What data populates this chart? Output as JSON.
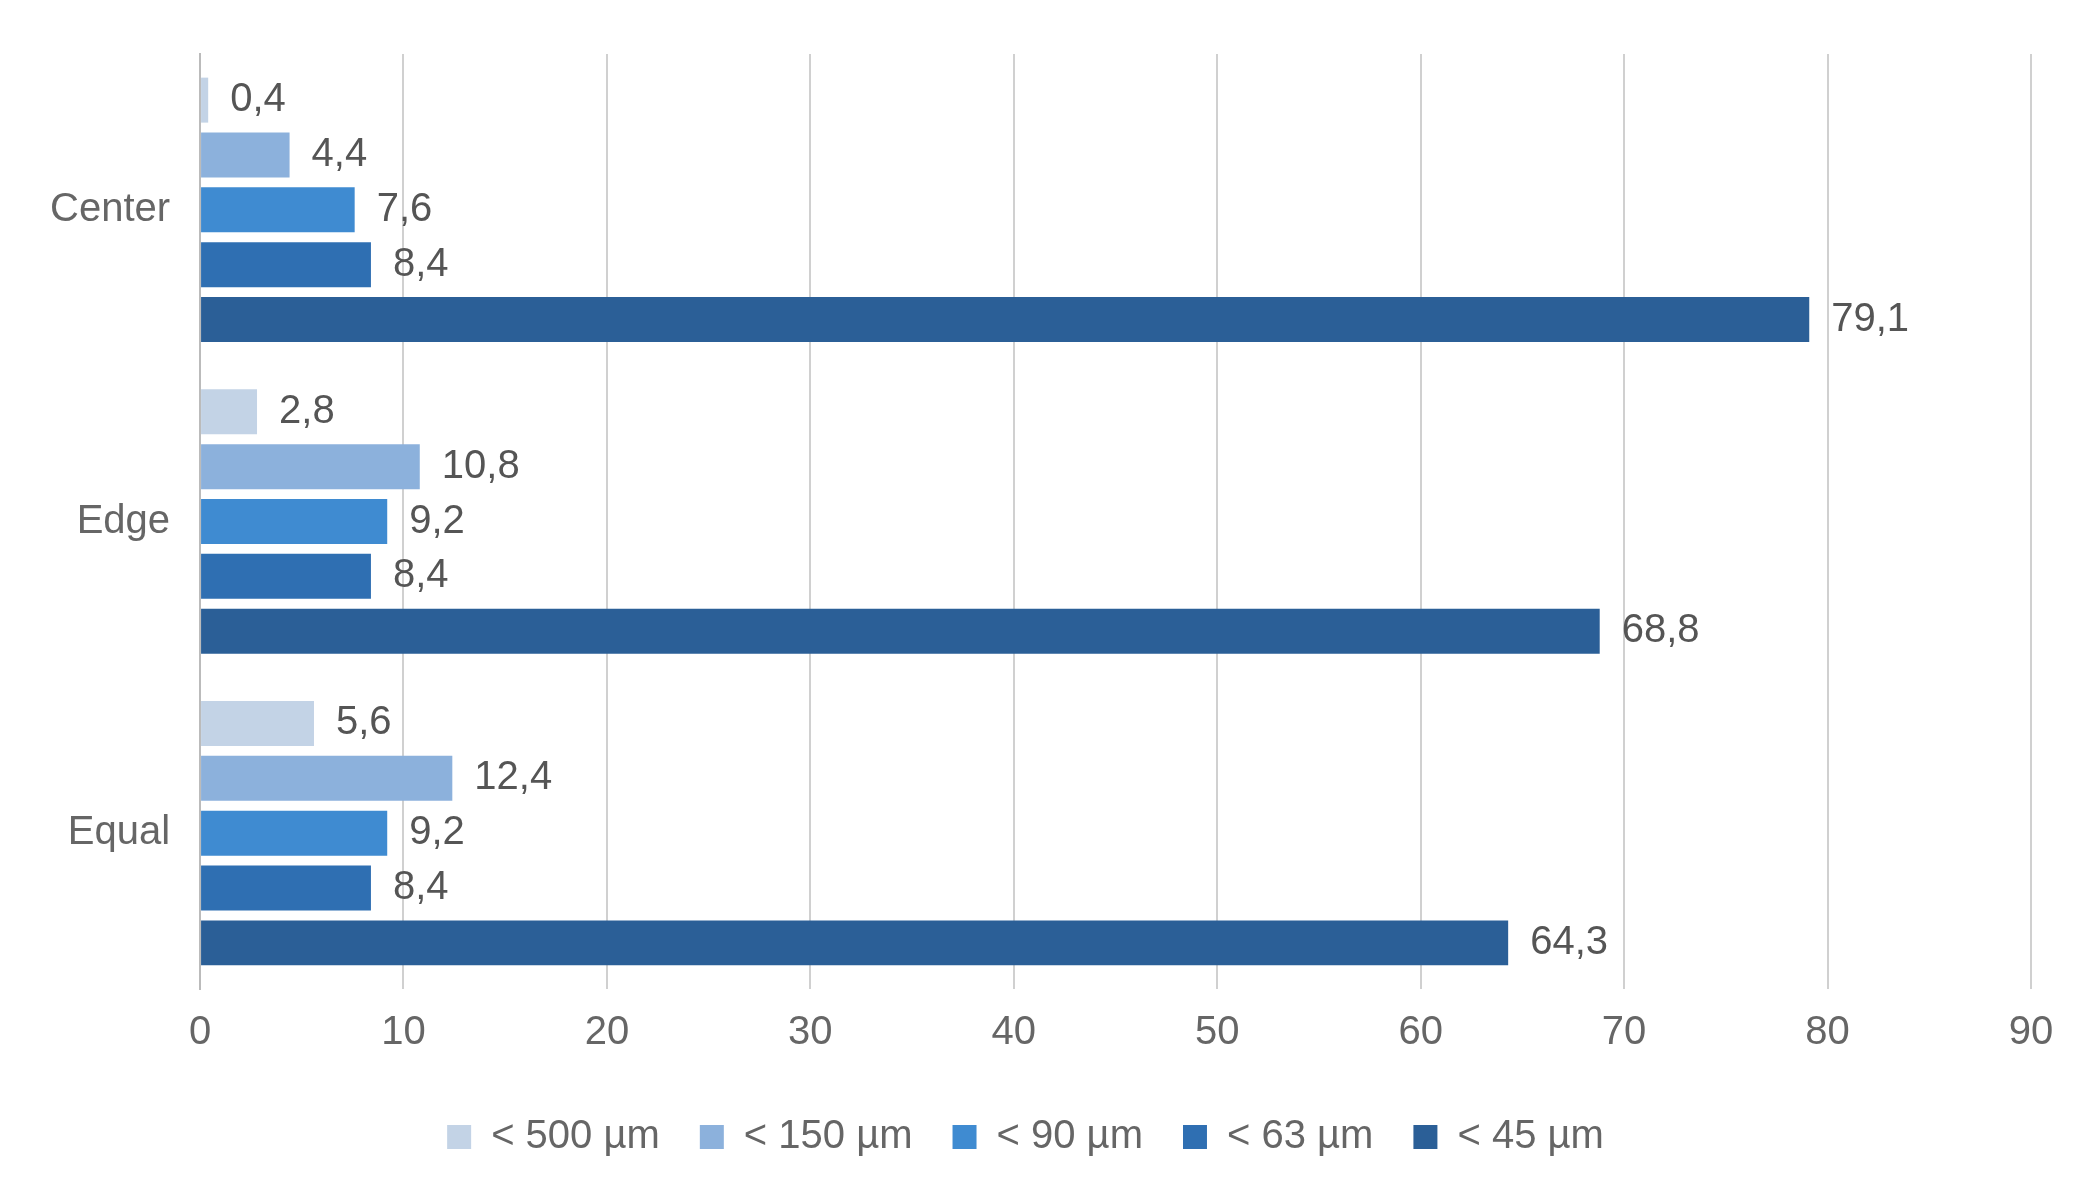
{
  "chart_data": {
    "type": "bar",
    "orientation": "horizontal",
    "categories": [
      "Center",
      "Edge",
      "Equal"
    ],
    "series": [
      {
        "name": "< 500 µm",
        "color": "#c3d3e6",
        "values": [
          0.4,
          2.8,
          5.6
        ],
        "value_labels": [
          "0,4",
          "2,8",
          "5,6"
        ]
      },
      {
        "name": "< 150 µm",
        "color": "#8cb1dc",
        "values": [
          4.4,
          10.8,
          12.4
        ],
        "value_labels": [
          "4,4",
          "10,8",
          "12,4"
        ]
      },
      {
        "name": "< 90 µm",
        "color": "#3f8bd1",
        "values": [
          7.6,
          9.2,
          9.2
        ],
        "value_labels": [
          "7,6",
          "9,2",
          "9,2"
        ]
      },
      {
        "name": "< 63 µm",
        "color": "#2f6fb2",
        "values": [
          8.4,
          8.4,
          8.4
        ],
        "value_labels": [
          "8,4",
          "8,4",
          "8,4"
        ]
      },
      {
        "name": "< 45 µm",
        "color": "#2b5f97",
        "values": [
          79.1,
          68.8,
          64.3
        ],
        "value_labels": [
          "79,1",
          "68,8",
          "64,3"
        ]
      }
    ],
    "xlim": [
      0,
      90
    ],
    "xticks": [
      0,
      10,
      20,
      30,
      40,
      50,
      60,
      70,
      80,
      90
    ],
    "grid": "x",
    "legend": "bottom"
  }
}
